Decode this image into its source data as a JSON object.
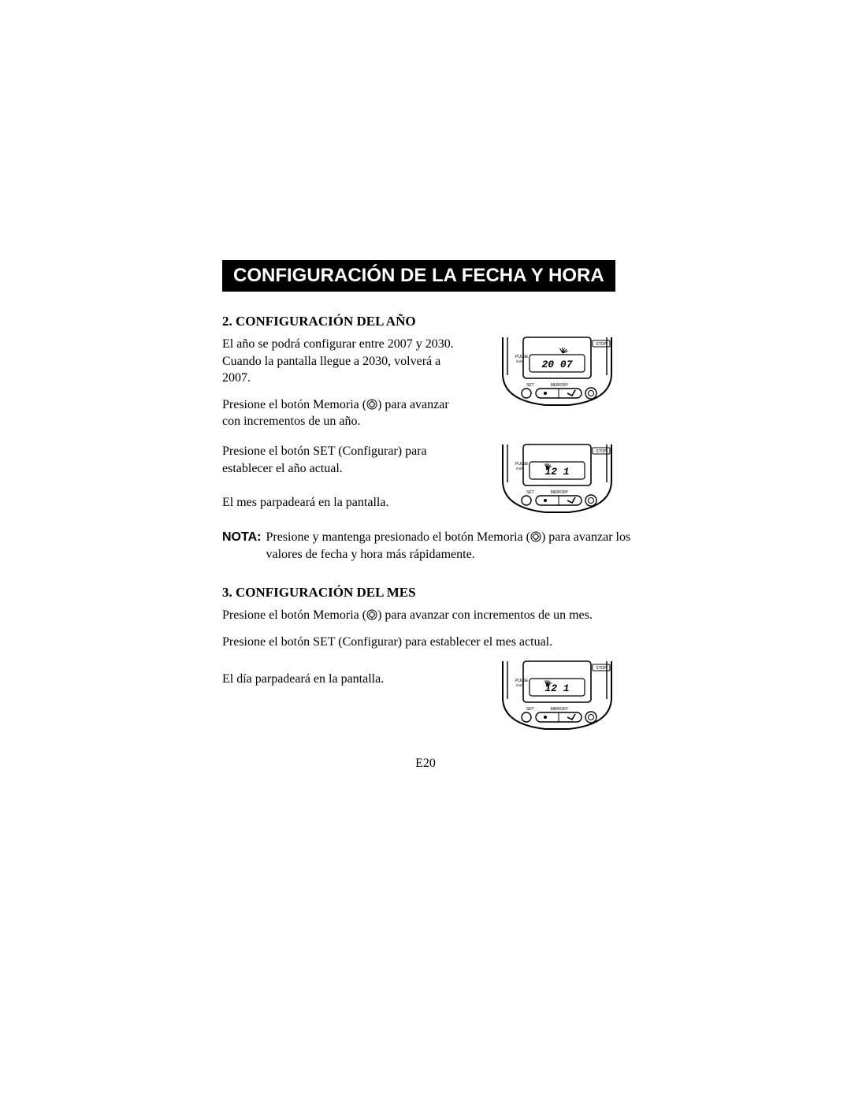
{
  "title_bar": "CONFIGURACIÓN DE LA FECHA Y HORA",
  "page_number": "E20",
  "memory_icon_glyph": "◎",
  "sections": {
    "year": {
      "heading": "2. CONFIGURACIÓN DEL AÑO",
      "p1": "El año se podrá configurar entre 2007 y 2030. Cuando la pantalla llegue a 2030, volverá a 2007.",
      "p2_pre": "Presione el botón Memoria (",
      "p2_post": ") para avanzar con incrementos de un año.",
      "p3": "Presione el botón SET (Configurar) para establecer el año actual.",
      "p4": "El mes parpadeará en la pantalla."
    },
    "note": {
      "label": "NOTA:",
      "text_pre": "Presione y mantenga presionado el botón Memoria (",
      "text_post": ") para avanzar los valores de fecha y hora más rápidamente."
    },
    "month": {
      "heading": "3. CONFIGURACIÓN DEL MES",
      "p1_pre": "Presione el botón Memoria (",
      "p1_post": ") para avanzar con incrementos de un mes.",
      "p2": "Presione el botón SET (Configurar) para establecer el mes actual.",
      "p3": "El día parpadeará en la pantalla."
    }
  },
  "device": {
    "labels": {
      "pulse": "PULSE",
      "pulse_sub": "/min",
      "stop": "STOP",
      "set": "SET",
      "memory": "MEMORY"
    },
    "displays": {
      "year": {
        "main": "20 07",
        "ticks_blink": false,
        "month_blink": false,
        "year_blink": true
      },
      "month": {
        "main": "12  1",
        "ticks_blink": true,
        "month_blink": true,
        "year_blink": false
      },
      "day": {
        "main": "12  1",
        "ticks_blink": true,
        "month_blink": false,
        "year_blink": false
      }
    }
  },
  "colors": {
    "black": "#000000",
    "white": "#ffffff",
    "gray": "#555555"
  }
}
